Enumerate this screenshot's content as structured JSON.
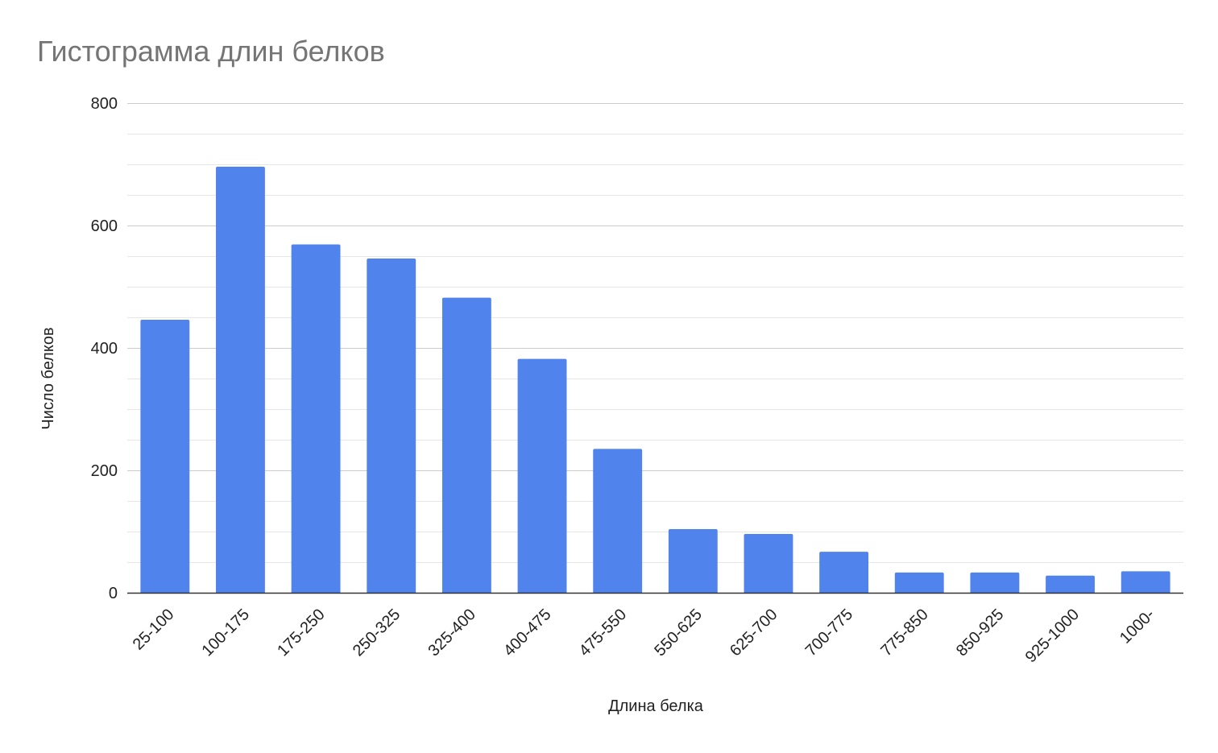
{
  "chart_data": {
    "type": "bar",
    "title": "Гистограмма длин белков",
    "xlabel": "Длина белка",
    "ylabel": "Число белков",
    "categories": [
      "25-100",
      "100-175",
      "175-250",
      "250-325",
      "325-400",
      "400-475",
      "475-550",
      "550-625",
      "625-700",
      "700-775",
      "775-850",
      "850-925",
      "925-1000",
      "1000-"
    ],
    "values": [
      446,
      696,
      569,
      546,
      482,
      382,
      235,
      104,
      96,
      67,
      33,
      33,
      28,
      35
    ],
    "ylim": [
      0,
      800
    ],
    "yticks": [
      0,
      200,
      400,
      600,
      800
    ],
    "minor_grid_step": 100,
    "grid": true,
    "bar_color": "#5183ec",
    "grid_color": "#cccccc",
    "minor_grid_color": "#e6e6e6",
    "axis_color": "#333333",
    "title_color": "#757575"
  }
}
